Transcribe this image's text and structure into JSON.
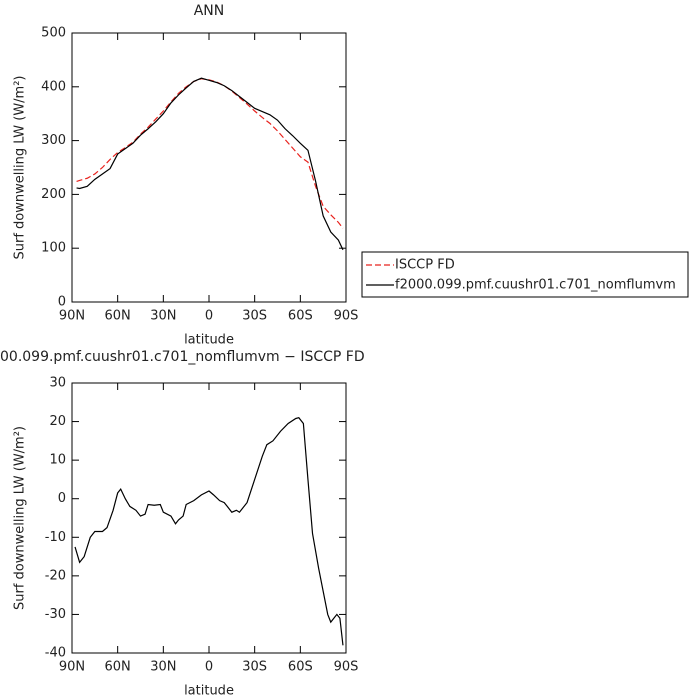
{
  "chart_data": [
    {
      "type": "line",
      "title": "ANN",
      "xlabel": "latitude",
      "ylabel": "Surf downwelling LW (W/m²)",
      "x": [
        87,
        85,
        80,
        75,
        70,
        65,
        60,
        55,
        50,
        45,
        40,
        35,
        30,
        25,
        20,
        15,
        10,
        5,
        0,
        -5,
        -10,
        -15,
        -20,
        -25,
        -30,
        -35,
        -40,
        -45,
        -50,
        -55,
        -60,
        -65,
        -70,
        -75,
        -80,
        -85,
        -88
      ],
      "series": [
        {
          "name": "ISCCP FD",
          "color": "#e8231e",
          "linestyle": "dashed",
          "values": [
            224,
            226,
            230,
            238,
            250,
            265,
            278,
            287,
            297,
            312,
            325,
            340,
            355,
            372,
            388,
            400,
            410,
            415,
            413,
            409,
            402,
            392,
            380,
            368,
            355,
            343,
            332,
            318,
            302,
            286,
            270,
            260,
            215,
            178,
            162,
            148,
            137
          ]
        },
        {
          "name": "f2000.099.pmf.cuushr01.c701_nomflumvm",
          "color": "#000000",
          "linestyle": "solid",
          "values": [
            212,
            211,
            215,
            228,
            238,
            248,
            275,
            285,
            295,
            310,
            322,
            335,
            350,
            370,
            385,
            398,
            410,
            416,
            412,
            408,
            402,
            393,
            382,
            371,
            360,
            354,
            348,
            338,
            322,
            309,
            295,
            282,
            225,
            160,
            130,
            115,
            97
          ]
        }
      ],
      "xlim": [
        90,
        -90
      ],
      "xticks": [
        {
          "value": 90,
          "label": "90N"
        },
        {
          "value": 60,
          "label": "60N"
        },
        {
          "value": 30,
          "label": "30N"
        },
        0,
        {
          "value": -30,
          "label": "30S"
        },
        {
          "value": -60,
          "label": "60S"
        },
        {
          "value": -90,
          "label": "90S"
        }
      ],
      "ylim": [
        0,
        500
      ],
      "yticks": [
        0,
        100,
        200,
        300,
        400,
        500
      ],
      "legend": "right"
    },
    {
      "type": "line",
      "title": "00.099.pmf.cuushr01.c701_nomflumvm − ISCCP FD",
      "xlabel": "latitude",
      "ylabel": "Surf downwelling LW (W/m²)",
      "x": [
        88,
        85,
        82,
        78,
        75,
        70,
        67,
        63,
        60,
        58,
        55,
        52,
        48,
        45,
        42,
        40,
        36,
        32,
        30,
        25,
        22,
        20,
        17,
        15,
        10,
        5,
        0,
        -3,
        -7,
        -10,
        -12,
        -15,
        -18,
        -20,
        -25,
        -30,
        -35,
        -38,
        -42,
        -47,
        -52,
        -57,
        -59,
        -62,
        -65,
        -68,
        -72,
        -75,
        -78,
        -80,
        -82,
        -84,
        -86,
        -88
      ],
      "series": [
        {
          "color": "#000000",
          "linestyle": "solid",
          "values": [
            -12.5,
            -16.5,
            -15,
            -10,
            -8.5,
            -8.5,
            -7.5,
            -3,
            1.5,
            2.5,
            0,
            -2,
            -3,
            -4.5,
            -4,
            -1.5,
            -1.7,
            -1.5,
            -3.5,
            -4.5,
            -6.5,
            -5.5,
            -4.5,
            -1.5,
            -0.5,
            1,
            2,
            1,
            -0.5,
            -1,
            -2,
            -3.5,
            -3,
            -3.5,
            -1,
            5,
            11,
            14,
            15,
            17.5,
            19.5,
            20.8,
            21,
            19.5,
            5,
            -9,
            -18,
            -24,
            -30,
            -32,
            -31,
            -30,
            -31,
            -38
          ]
        }
      ],
      "xlim": [
        90,
        -90
      ],
      "xticks": [
        {
          "value": 90,
          "label": "90N"
        },
        {
          "value": 60,
          "label": "60N"
        },
        {
          "value": 30,
          "label": "30N"
        },
        0,
        {
          "value": -30,
          "label": "30S"
        },
        {
          "value": -60,
          "label": "60S"
        },
        {
          "value": -90,
          "label": "90S"
        }
      ],
      "ylim": [
        -40,
        30
      ],
      "yticks": [
        -40,
        -30,
        -20,
        -10,
        0,
        10,
        20,
        30
      ]
    }
  ]
}
